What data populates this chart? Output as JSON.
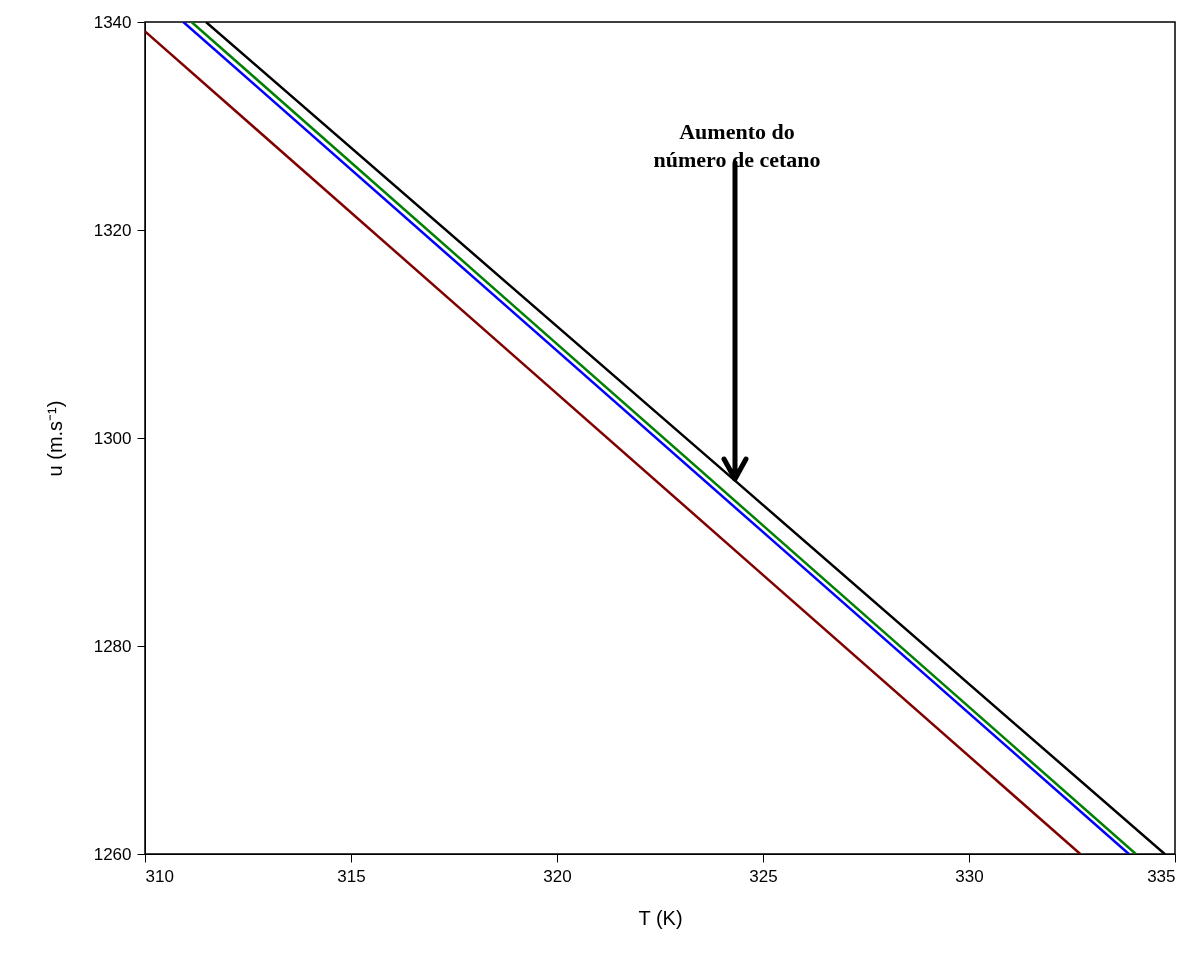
{
  "chart_data": {
    "type": "line",
    "xlabel": "T (K)",
    "ylabel": "u (m.s⁻¹)",
    "xlim": [
      310,
      335
    ],
    "ylim": [
      1260,
      1340
    ],
    "xticks": [
      310,
      315,
      320,
      325,
      330,
      335
    ],
    "yticks": [
      1260,
      1280,
      1300,
      1320,
      1340
    ],
    "grid": false,
    "line_style": "solid",
    "marker": "none",
    "series": [
      {
        "color": "#800000",
        "x": [
          310,
          332.7
        ],
        "values": [
          1339.1,
          1260
        ]
      },
      {
        "color": "#0000ff",
        "x": [
          310.93,
          333.88
        ],
        "values": [
          1340,
          1260
        ]
      },
      {
        "color": "#008000",
        "x": [
          311.13,
          334.05
        ],
        "values": [
          1340,
          1260
        ]
      },
      {
        "color": "#000000",
        "x": [
          311.48,
          324.32,
          334.75
        ],
        "values": [
          1340,
          1295.9,
          1260
        ]
      }
    ],
    "annotations": [
      "Aumento do",
      {
        "text": "número de cetano",
        "x": 324.32,
        "y": 1295.9
      }
    ]
  }
}
